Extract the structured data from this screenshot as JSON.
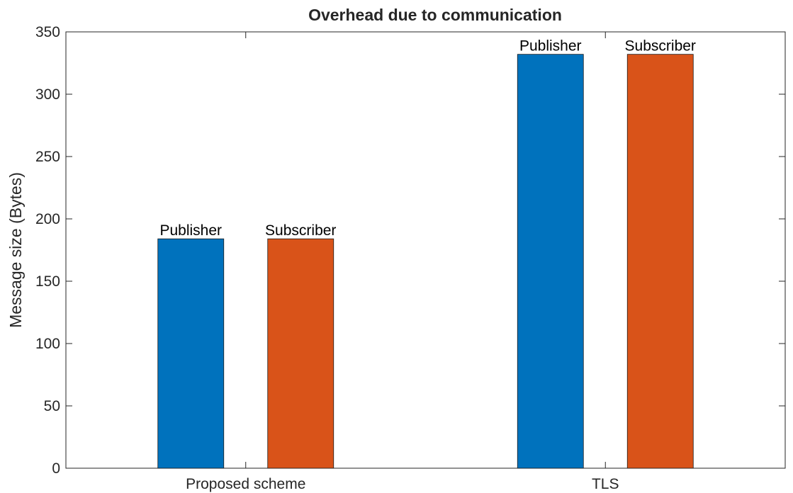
{
  "chart_data": {
    "type": "bar",
    "title": "Overhead due to communication",
    "xlabel": "",
    "ylabel": "Message size (Bytes)",
    "categories": [
      "Proposed scheme",
      "TLS"
    ],
    "series": [
      {
        "name": "Publisher",
        "values": [
          184,
          332
        ],
        "color": "#0072BD"
      },
      {
        "name": "Subscriber",
        "values": [
          184,
          332
        ],
        "color": "#D95319"
      }
    ],
    "ylim": [
      0,
      350
    ],
    "yticks": [
      0,
      50,
      100,
      150,
      200,
      250,
      300,
      350
    ],
    "grid": false,
    "legend": "none"
  }
}
